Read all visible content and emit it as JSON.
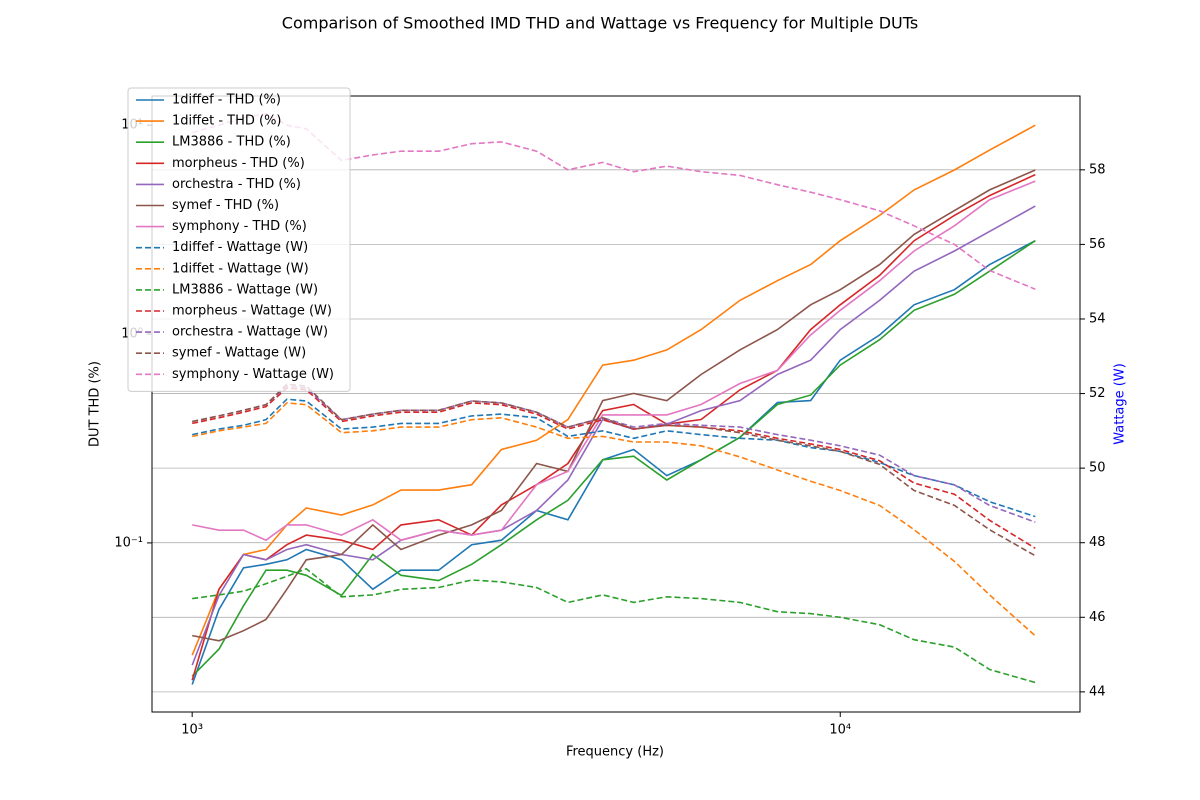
{
  "chart_data": {
    "type": "line",
    "title": "Comparison of Smoothed IMD THD and Wattage vs Frequency for Multiple DUTs",
    "xlabel": "Frequency (Hz)",
    "ylabel": "DUT THD (%)",
    "y2label": "Wattage (W)",
    "y2color": "blue",
    "xscale": "log",
    "yscale": "log",
    "xlim": [
      867,
      23440
    ],
    "ylim": [
      0.0155,
      13.8
    ],
    "y2lim": [
      43.46,
      59.98
    ],
    "xticks": [
      {
        "value": 1000,
        "label": "10³"
      },
      {
        "value": 10000,
        "label": "10⁴"
      }
    ],
    "yticks": [
      {
        "value": 0.1,
        "label": "10⁻¹"
      },
      {
        "value": 1,
        "label": "10⁰"
      },
      {
        "value": 10,
        "label": "10¹"
      }
    ],
    "y2ticks": [
      44,
      46,
      48,
      50,
      52,
      54,
      56,
      58
    ],
    "grid": true,
    "legend": "upper left",
    "x": [
      1000,
      1100,
      1200,
      1300,
      1400,
      1500,
      1700,
      1900,
      2100,
      2400,
      2700,
      3000,
      3400,
      3800,
      4300,
      4800,
      5400,
      6100,
      7000,
      8000,
      9000,
      10000,
      11500,
      13000,
      15000,
      17000,
      20000
    ],
    "series": [
      {
        "name": "1diffef - THD (%)",
        "color": "#1f77b4",
        "linestyle": "solid",
        "values": [
          0.021,
          0.048,
          0.076,
          0.079,
          0.083,
          0.093,
          0.083,
          0.06,
          0.074,
          0.074,
          0.098,
          0.103,
          0.143,
          0.129,
          0.25,
          0.28,
          0.21,
          0.25,
          0.32,
          0.47,
          0.48,
          0.75,
          0.99,
          1.38,
          1.63,
          2.15,
          2.8
        ]
      },
      {
        "name": "1diffet - THD (%)",
        "color": "#ff7f0e",
        "linestyle": "solid",
        "values": [
          0.029,
          0.06,
          0.088,
          0.093,
          0.122,
          0.147,
          0.136,
          0.152,
          0.179,
          0.179,
          0.19,
          0.28,
          0.31,
          0.39,
          0.71,
          0.75,
          0.84,
          1.05,
          1.45,
          1.8,
          2.15,
          2.8,
          3.7,
          4.9,
          6.1,
          7.6,
          10
        ]
      },
      {
        "name": "LM3886 - THD (%)",
        "color": "#2ca02c",
        "linestyle": "solid",
        "values": [
          0.023,
          0.031,
          0.05,
          0.074,
          0.074,
          0.07,
          0.056,
          0.088,
          0.07,
          0.066,
          0.079,
          0.098,
          0.129,
          0.16,
          0.25,
          0.26,
          0.2,
          0.25,
          0.32,
          0.46,
          0.51,
          0.71,
          0.94,
          1.3,
          1.55,
          2.0,
          2.8
        ]
      },
      {
        "name": "morpheus - THD (%)",
        "color": "#d62728",
        "linestyle": "solid",
        "values": [
          0.022,
          0.06,
          0.088,
          0.083,
          0.098,
          0.109,
          0.103,
          0.093,
          0.122,
          0.129,
          0.109,
          0.152,
          0.19,
          0.24,
          0.43,
          0.46,
          0.37,
          0.39,
          0.54,
          0.67,
          1.05,
          1.38,
          1.91,
          2.8,
          3.7,
          4.6,
          5.8
        ]
      },
      {
        "name": "orchestra - THD (%)",
        "color": "#9467bd",
        "linestyle": "solid",
        "values": [
          0.026,
          0.056,
          0.088,
          0.083,
          0.093,
          0.098,
          0.088,
          0.083,
          0.103,
          0.115,
          0.109,
          0.115,
          0.143,
          0.2,
          0.39,
          0.35,
          0.37,
          0.43,
          0.48,
          0.64,
          0.75,
          1.05,
          1.45,
          2.0,
          2.5,
          3.1,
          4.1
        ]
      },
      {
        "name": "symef - THD (%)",
        "color": "#8c564b",
        "linestyle": "solid",
        "values": [
          0.036,
          0.034,
          0.038,
          0.043,
          0.06,
          0.083,
          0.088,
          0.122,
          0.093,
          0.109,
          0.122,
          0.143,
          0.24,
          0.22,
          0.48,
          0.52,
          0.48,
          0.64,
          0.84,
          1.05,
          1.38,
          1.63,
          2.15,
          3.0,
          3.9,
          4.9,
          6.1
        ]
      },
      {
        "name": "symphony - THD (%)",
        "color": "#e377c2",
        "linestyle": "solid",
        "values": [
          0.122,
          0.115,
          0.115,
          0.103,
          0.122,
          0.122,
          0.109,
          0.129,
          0.103,
          0.115,
          0.109,
          0.115,
          0.19,
          0.22,
          0.41,
          0.41,
          0.41,
          0.46,
          0.58,
          0.67,
          0.99,
          1.3,
          1.8,
          2.5,
          3.3,
          4.4,
          5.4
        ]
      },
      {
        "name": "1diffef - Wattage (W)",
        "color": "#1f77b4",
        "linestyle": "dashed",
        "axis": "y2",
        "values": [
          50.9,
          51.05,
          51.15,
          51.3,
          51.85,
          51.8,
          51.05,
          51.1,
          51.2,
          51.2,
          51.4,
          51.45,
          51.35,
          50.85,
          51.0,
          50.8,
          51.0,
          50.9,
          50.8,
          50.75,
          50.55,
          50.45,
          50.15,
          49.8,
          49.55,
          49.1,
          48.7
        ]
      },
      {
        "name": "1diffet - Wattage (W)",
        "color": "#ff7f0e",
        "linestyle": "dashed",
        "axis": "y2",
        "values": [
          50.85,
          51.0,
          51.1,
          51.2,
          51.75,
          51.7,
          50.95,
          51.0,
          51.1,
          51.1,
          51.3,
          51.35,
          51.1,
          50.8,
          50.85,
          50.7,
          50.7,
          50.6,
          50.3,
          49.95,
          49.65,
          49.4,
          49.0,
          48.35,
          47.5,
          46.6,
          45.5
        ]
      },
      {
        "name": "LM3886 - Wattage (W)",
        "color": "#2ca02c",
        "linestyle": "dashed",
        "axis": "y2",
        "values": [
          46.5,
          46.6,
          46.7,
          46.9,
          47.1,
          47.3,
          46.55,
          46.6,
          46.75,
          46.8,
          47.0,
          46.95,
          46.8,
          46.4,
          46.6,
          46.4,
          46.55,
          46.5,
          46.4,
          46.15,
          46.1,
          46.0,
          45.8,
          45.4,
          45.2,
          44.6,
          44.25
        ]
      },
      {
        "name": "morpheus - Wattage (W)",
        "color": "#d62728",
        "linestyle": "dashed",
        "axis": "y2",
        "values": [
          51.2,
          51.35,
          51.5,
          51.65,
          52.15,
          52.1,
          51.25,
          51.4,
          51.5,
          51.5,
          51.75,
          51.7,
          51.45,
          51.05,
          51.3,
          51.05,
          51.15,
          51.1,
          51.0,
          50.8,
          50.65,
          50.5,
          50.2,
          49.6,
          49.3,
          48.6,
          47.85
        ]
      },
      {
        "name": "orchestra - Wattage (W)",
        "color": "#9467bd",
        "linestyle": "dashed",
        "axis": "y2",
        "values": [
          51.25,
          51.4,
          51.55,
          51.7,
          52.2,
          52.15,
          51.3,
          51.45,
          51.55,
          51.55,
          51.8,
          51.75,
          51.5,
          51.1,
          51.35,
          51.1,
          51.2,
          51.15,
          51.1,
          50.9,
          50.75,
          50.6,
          50.35,
          49.8,
          49.55,
          49.0,
          48.55
        ]
      },
      {
        "name": "symef - Wattage (W)",
        "color": "#8c564b",
        "linestyle": "dashed",
        "axis": "y2",
        "values": [
          51.25,
          51.4,
          51.55,
          51.7,
          52.25,
          52.2,
          51.3,
          51.45,
          51.55,
          51.55,
          51.8,
          51.75,
          51.5,
          51.1,
          51.35,
          51.05,
          51.15,
          51.1,
          50.95,
          50.75,
          50.6,
          50.45,
          50.1,
          49.4,
          49.0,
          48.35,
          47.65
        ]
      },
      {
        "name": "symphony - Wattage (W)",
        "color": "#e377c2",
        "linestyle": "dashed",
        "axis": "y2",
        "values": [
          59.0,
          59.2,
          59.4,
          59.5,
          59.2,
          59.1,
          58.25,
          58.4,
          58.5,
          58.5,
          58.7,
          58.75,
          58.5,
          58.0,
          58.2,
          57.95,
          58.1,
          57.95,
          57.85,
          57.6,
          57.4,
          57.2,
          56.9,
          56.5,
          56.0,
          55.3,
          54.8
        ]
      }
    ]
  }
}
